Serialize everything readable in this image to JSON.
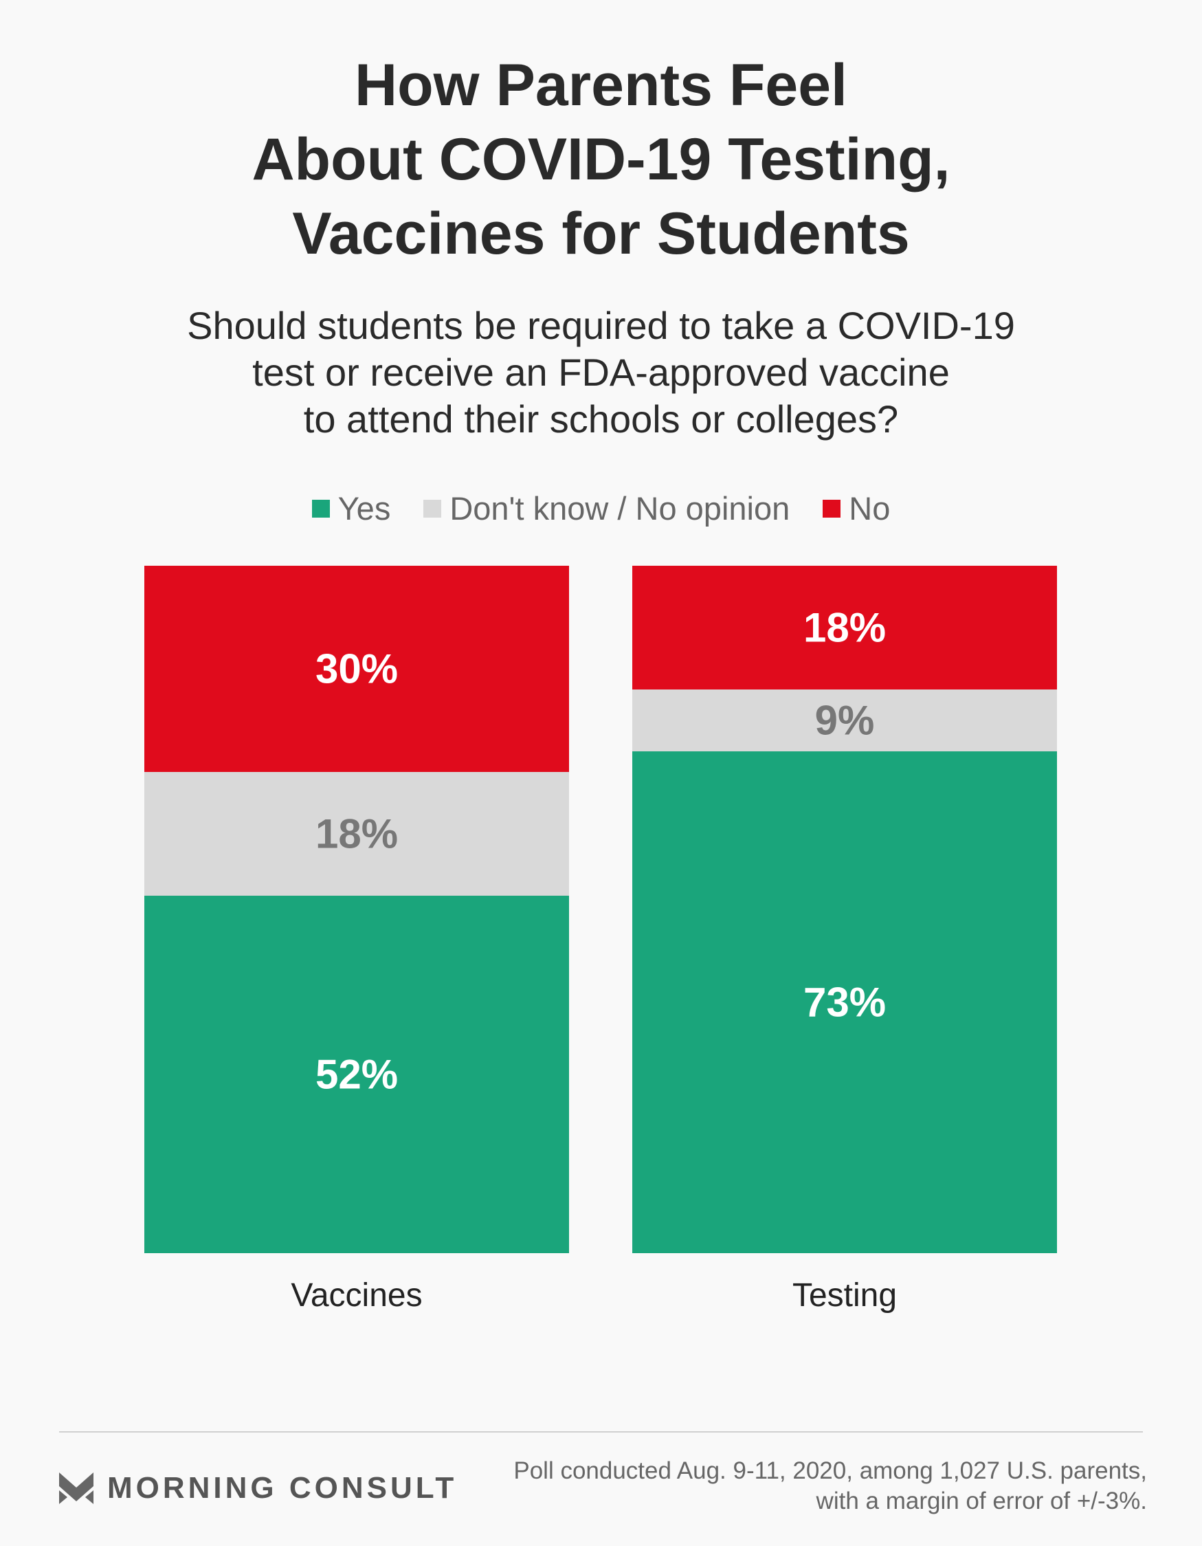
{
  "title_lines": [
    "How Parents Feel",
    "About COVID-19 Testing,",
    "Vaccines for Students"
  ],
  "subtitle_lines": [
    "Should students be required to take a COVID-19",
    "test or receive an FDA-approved vaccine",
    "to attend their schools or colleges?"
  ],
  "chart_data": {
    "type": "bar",
    "stacked": true,
    "normalized_percent": true,
    "categories": [
      "Vaccines",
      "Testing"
    ],
    "series": [
      {
        "name": "Yes",
        "values": [
          52,
          73
        ],
        "color": "#1aa57b",
        "label_color": "#ffffff"
      },
      {
        "name": "Don't know / No opinion",
        "values": [
          18,
          9
        ],
        "color": "#d9d9d9",
        "label_color": "#777777"
      },
      {
        "name": "No",
        "values": [
          30,
          18
        ],
        "color": "#e00b1c",
        "label_color": "#ffffff"
      }
    ],
    "data_labels": [
      [
        "52%",
        "73%"
      ],
      [
        "18%",
        "9%"
      ],
      [
        "30%",
        "18%"
      ]
    ],
    "legend_position": "top-center",
    "ylim": [
      0,
      100
    ],
    "grid": false
  },
  "footer": {
    "brand": "MORNING CONSULT",
    "note_lines": [
      "Poll conducted Aug. 9-11, 2020, among 1,027 U.S. parents,",
      "with a margin of error of +/-3%."
    ]
  }
}
